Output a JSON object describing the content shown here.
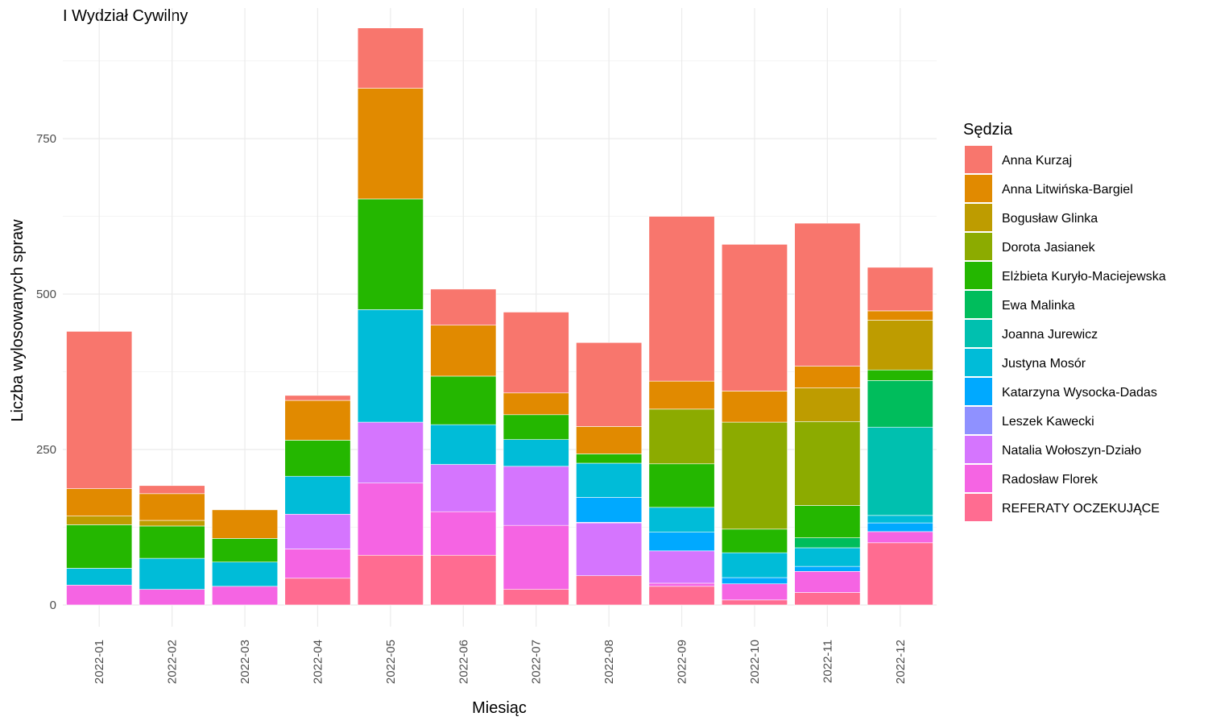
{
  "chart_data": {
    "type": "bar",
    "stacked": true,
    "title": "I Wydział Cywilny",
    "xlabel": "Miesiąc",
    "ylabel": "Liczba wylosowanych spraw",
    "legend_title": "Sędzia",
    "legend_position": "right",
    "grid": true,
    "ylim": [
      -35,
      960
    ],
    "y_ticks": [
      0,
      250,
      500,
      750
    ],
    "y_tick_labels": [
      "0",
      "250",
      "500",
      "750"
    ],
    "categories": [
      "2022-01",
      "2022-02",
      "2022-03",
      "2022-04",
      "2022-05",
      "2022-06",
      "2022-07",
      "2022-08",
      "2022-09",
      "2022-10",
      "2022-11",
      "2022-12"
    ],
    "series": [
      {
        "name": "REFERATY OCZEKUJĄCE",
        "color": "#FF6C91",
        "values": [
          0,
          0,
          0,
          43,
          80,
          80,
          25,
          47,
          30,
          8,
          20,
          100
        ]
      },
      {
        "name": "Radosław Florek",
        "color": "#F564E3",
        "values": [
          32,
          25,
          30,
          47,
          116,
          70,
          103,
          0,
          5,
          26,
          34,
          18
        ]
      },
      {
        "name": "Natalia Wołoszyn-Działo",
        "color": "#D575FE",
        "values": [
          0,
          0,
          0,
          56,
          98,
          76,
          95,
          85,
          52,
          0,
          0,
          0
        ]
      },
      {
        "name": "Leszek Kawecki",
        "color": "#8F91FF",
        "values": [
          0,
          0,
          0,
          0,
          0,
          0,
          0,
          1,
          0,
          0,
          0,
          0
        ]
      },
      {
        "name": "Katarzyna Wysocka-Dadas",
        "color": "#00A9FF",
        "values": [
          0,
          0,
          0,
          0,
          0,
          0,
          0,
          40,
          30,
          10,
          8,
          14
        ]
      },
      {
        "name": "Justyna Mosór",
        "color": "#00BCD8",
        "values": [
          27,
          50,
          39,
          61,
          181,
          64,
          43,
          55,
          40,
          40,
          30,
          12
        ]
      },
      {
        "name": "Joanna Jurewicz",
        "color": "#00C0AF",
        "values": [
          0,
          0,
          0,
          0,
          0,
          0,
          0,
          0,
          0,
          0,
          0,
          142
        ]
      },
      {
        "name": "Ewa Malinka",
        "color": "#00BD5C",
        "values": [
          0,
          0,
          0,
          0,
          0,
          0,
          0,
          0,
          0,
          0,
          16,
          75
        ]
      },
      {
        "name": "Elżbieta Kuryło-Maciejewska",
        "color": "#24B700",
        "values": [
          70,
          52,
          38,
          58,
          178,
          78,
          40,
          15,
          70,
          38,
          52,
          17
        ]
      },
      {
        "name": "Dorota Jasianek",
        "color": "#8CAB00",
        "values": [
          0,
          0,
          0,
          0,
          0,
          0,
          0,
          0,
          88,
          172,
          135,
          0
        ]
      },
      {
        "name": "Bogusław Glinka",
        "color": "#BE9C00",
        "values": [
          14,
          9,
          0,
          0,
          0,
          0,
          0,
          0,
          0,
          0,
          54,
          80
        ]
      },
      {
        "name": "Anna Litwińska-Bargiel",
        "color": "#E18A00",
        "values": [
          44,
          43,
          46,
          64,
          178,
          82,
          35,
          44,
          45,
          50,
          35,
          15
        ]
      },
      {
        "name": "Anna Kurzaj",
        "color": "#F8766D",
        "values": [
          253,
          13,
          0,
          8,
          97,
          58,
          130,
          135,
          265,
          236,
          230,
          70
        ]
      }
    ],
    "legend_order": [
      "Anna Kurzaj",
      "Anna Litwińska-Bargiel",
      "Bogusław Glinka",
      "Dorota Jasianek",
      "Elżbieta Kuryło-Maciejewska",
      "Ewa Malinka",
      "Joanna Jurewicz",
      "Justyna Mosór",
      "Katarzyna Wysocka-Dadas",
      "Leszek Kawecki",
      "Natalia Wołoszyn-Działo",
      "Radosław Florek",
      "REFERATY OCZEKUJĄCE"
    ]
  }
}
